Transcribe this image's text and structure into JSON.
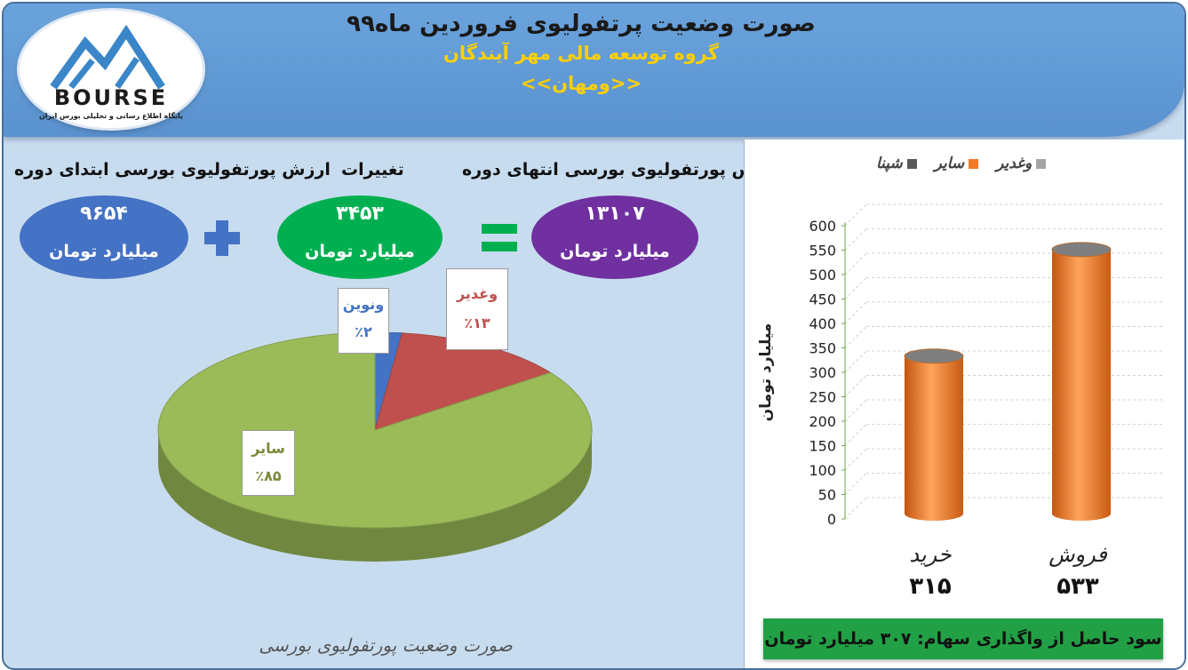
{
  "header": {
    "title": "صورت وضعیت پرتفولیوی فروردین ماه۹۹",
    "subtitle": "گروه توسعه مالی مهر آیندگان",
    "ticker": "<<ومهان>>",
    "logo_text": "BOURSE",
    "logo_tagline": "پایگاه اطلاع رسانی و تحلیلی بورس ایران"
  },
  "summary": {
    "start_label": "ارزش پورتفولیوی بورسی ابتدای دوره",
    "start_value": "۹۶۵۴",
    "change_label": "تغییرات",
    "change_value": "۳۴۵۳",
    "end_label": "ارزش پورتفولیوی بورسی انتهای دوره",
    "end_value": "۱۳۱۰۷",
    "unit": "میلیارد تومان",
    "colors": {
      "start": "#4472c4",
      "change": "#00b050",
      "end": "#7030a0",
      "plus": "#4472c4",
      "equals": "#00b050"
    }
  },
  "pie_labels": {
    "vnovin_name": "ونوین",
    "vnovin_pct": "٪۲",
    "vghadir_name": "وغدیر",
    "vghadir_pct": "٪۱۳",
    "sayer_name": "سایر",
    "sayer_pct": "٪۸۵"
  },
  "footer_caption": "صورت وضعیت پورتفولیوی بورسی",
  "legend": {
    "shapna": "شپنا",
    "sayer": "سایر",
    "vghadir": "وغدیر"
  },
  "status_bar": "سود حاصل از واگذاری سهام: ۳۰۷ میلیارد تومان",
  "chart_data": [
    {
      "type": "pie",
      "categories": [
        "ونوین",
        "وغدیر",
        "سایر"
      ],
      "values": [
        2,
        13,
        85
      ],
      "colors": [
        "#4472c4",
        "#c0504d",
        "#9bbb59"
      ]
    },
    {
      "type": "bar",
      "categories": [
        "خرید",
        "فروش"
      ],
      "values": [
        315,
        533
      ],
      "value_labels": [
        "۳۱۵",
        "۵۳۳"
      ],
      "ylabel": "میلیارد تومان",
      "ylim": [
        0,
        600
      ],
      "yticks": [
        0,
        50,
        100,
        150,
        200,
        250,
        300,
        350,
        400,
        450,
        500,
        550,
        600
      ],
      "bar_color": "#f07c28",
      "legend": [
        "شپنا",
        "سایر",
        "وغدیر"
      ],
      "legend_colors": [
        "#595959",
        "#f07c28",
        "#a5a5a5"
      ],
      "legend_position": "top"
    }
  ]
}
